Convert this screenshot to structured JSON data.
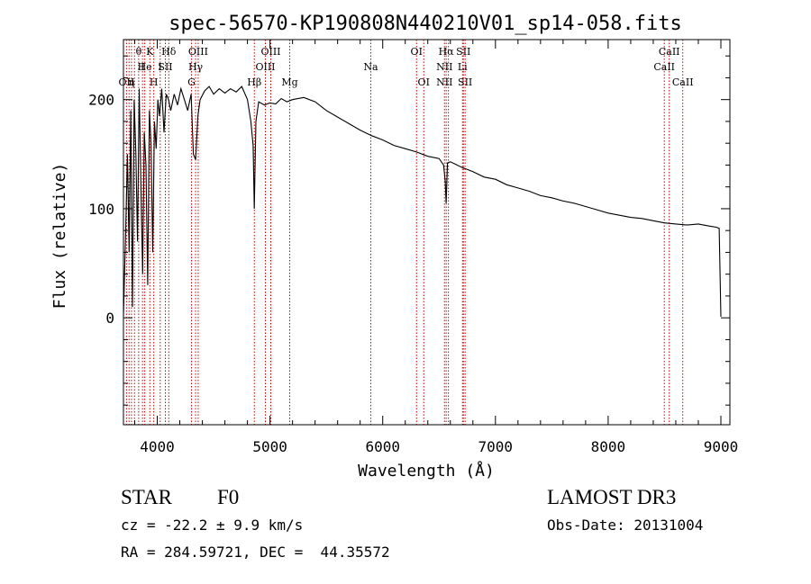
{
  "chart_data": {
    "type": "line",
    "title": "spec-56570-KP190808N440210V01_sp14-058.fits",
    "xlabel": "Wavelength (Å)",
    "ylabel": "Flux (relative)",
    "xlim": [
      3700,
      9080
    ],
    "ylim": [
      -98,
      255
    ],
    "xticks": [
      4000,
      5000,
      6000,
      7000,
      8000,
      9000
    ],
    "yticks": [
      0,
      100,
      200
    ],
    "series": [
      {
        "name": "flux",
        "x": [
          3700,
          3720,
          3735,
          3750,
          3765,
          3780,
          3795,
          3810,
          3825,
          3840,
          3855,
          3870,
          3885,
          3900,
          3915,
          3930,
          3945,
          3960,
          3975,
          3990,
          4005,
          4020,
          4040,
          4060,
          4080,
          4100,
          4120,
          4150,
          4180,
          4210,
          4240,
          4270,
          4300,
          4320,
          4340,
          4360,
          4380,
          4420,
          4460,
          4500,
          4550,
          4600,
          4650,
          4700,
          4750,
          4800,
          4830,
          4850,
          4861,
          4875,
          4900,
          4950,
          5000,
          5050,
          5100,
          5150,
          5200,
          5300,
          5400,
          5500,
          5600,
          5700,
          5800,
          5900,
          6000,
          6100,
          6200,
          6300,
          6400,
          6500,
          6540,
          6555,
          6563,
          6575,
          6600,
          6700,
          6800,
          6900,
          7000,
          7100,
          7200,
          7300,
          7400,
          7500,
          7600,
          7700,
          7800,
          7900,
          8000,
          8100,
          8200,
          8300,
          8400,
          8500,
          8600,
          8700,
          8800,
          8900,
          8960,
          8985,
          9000
        ],
        "y": [
          2,
          80,
          150,
          60,
          190,
          10,
          200,
          150,
          70,
          210,
          120,
          40,
          170,
          140,
          30,
          190,
          160,
          60,
          180,
          155,
          200,
          185,
          210,
          170,
          205,
          200,
          190,
          205,
          195,
          210,
          200,
          190,
          205,
          150,
          145,
          185,
          200,
          208,
          212,
          205,
          210,
          206,
          210,
          207,
          212,
          200,
          180,
          158,
          100,
          180,
          198,
          195,
          197,
          196,
          201,
          198,
          200,
          202,
          198,
          190,
          184,
          178,
          172,
          167,
          163,
          158,
          155,
          152,
          148,
          146,
          140,
          125,
          105,
          142,
          143,
          138,
          134,
          129,
          127,
          122,
          119,
          116,
          112,
          110,
          107,
          105,
          102,
          99,
          96,
          94,
          92,
          91,
          89,
          87,
          86,
          85,
          86,
          84,
          83,
          82,
          1
        ]
      }
    ],
    "lines": [
      {
        "wl": 3727,
        "labels": [
          {
            "text": "OII",
            "row": 3
          }
        ]
      },
      {
        "wl": 3750,
        "labels": []
      },
      {
        "wl": 3771,
        "labels": [
          {
            "text": "η",
            "row": 3
          }
        ]
      },
      {
        "wl": 3798,
        "labels": []
      },
      {
        "wl": 3835,
        "labels": [
          {
            "text": "θ",
            "row": 1
          }
        ]
      },
      {
        "wl": 3869,
        "labels": [
          {
            "text": "I",
            "row": 2
          }
        ]
      },
      {
        "wl": 3889,
        "labels": [
          {
            "text": "He",
            "row": 2
          }
        ]
      },
      {
        "wl": 3934,
        "labels": [
          {
            "text": "K",
            "row": 1
          }
        ]
      },
      {
        "wl": 3969,
        "labels": [
          {
            "text": "H",
            "row": 3
          }
        ]
      },
      {
        "wl": 4026,
        "labels": [
          {
            "text": "I",
            "row": 2
          }
        ]
      },
      {
        "wl": 4072,
        "labels": [
          {
            "text": "SII",
            "row": 2
          }
        ]
      },
      {
        "wl": 4102,
        "labels": [
          {
            "text": "Hδ",
            "row": 1
          }
        ]
      },
      {
        "wl": 4304,
        "labels": [
          {
            "text": "G",
            "row": 3
          }
        ]
      },
      {
        "wl": 4340,
        "labels": [
          {
            "text": "Hγ",
            "row": 2
          }
        ]
      },
      {
        "wl": 4363,
        "labels": [
          {
            "text": "OIII",
            "row": 1
          }
        ]
      },
      {
        "wl": 4861,
        "labels": [
          {
            "text": "Hβ",
            "row": 3
          }
        ]
      },
      {
        "wl": 4959,
        "labels": [
          {
            "text": "OIII",
            "row": 2
          }
        ]
      },
      {
        "wl": 5007,
        "labels": [
          {
            "text": "OIII",
            "row": 1
          }
        ]
      },
      {
        "wl": 5175,
        "labels": [
          {
            "text": "Mg",
            "row": 3
          }
        ]
      },
      {
        "wl": 5894,
        "labels": [
          {
            "text": "Na",
            "row": 2
          }
        ]
      },
      {
        "wl": 6300,
        "labels": [
          {
            "text": "OI",
            "row": 1
          }
        ]
      },
      {
        "wl": 6364,
        "labels": [
          {
            "text": "OI",
            "row": 3
          }
        ]
      },
      {
        "wl": 6548,
        "labels": [
          {
            "text": "NII",
            "row": 2
          },
          {
            "text": "NII",
            "row": 3
          }
        ]
      },
      {
        "wl": 6563,
        "labels": [
          {
            "text": "Hα",
            "row": 1
          }
        ]
      },
      {
        "wl": 6583,
        "labels": []
      },
      {
        "wl": 6708,
        "labels": [
          {
            "text": "Li",
            "row": 2
          }
        ]
      },
      {
        "wl": 6716,
        "labels": [
          {
            "text": "SII",
            "row": 1
          }
        ]
      },
      {
        "wl": 6731,
        "labels": [
          {
            "text": "SII",
            "row": 3
          }
        ]
      },
      {
        "wl": 8498,
        "labels": [
          {
            "text": "CaII",
            "row": 2
          }
        ]
      },
      {
        "wl": 8542,
        "labels": [
          {
            "text": "CaII",
            "row": 1
          }
        ]
      },
      {
        "wl": 8662,
        "labels": [
          {
            "text": "CaII",
            "row": 3
          }
        ]
      }
    ],
    "colors": {
      "spectrum": "#000000",
      "marker": "#cc0000",
      "axes": "#000000"
    }
  },
  "info": {
    "class": "STAR",
    "subclass": "F0",
    "survey": "LAMOST DR3",
    "cz": "cz = -22.2 ± 9.9 km/s",
    "obs_date": "Obs-Date: 20131004",
    "radec": "RA = 284.59721, DEC =  44.35572"
  }
}
